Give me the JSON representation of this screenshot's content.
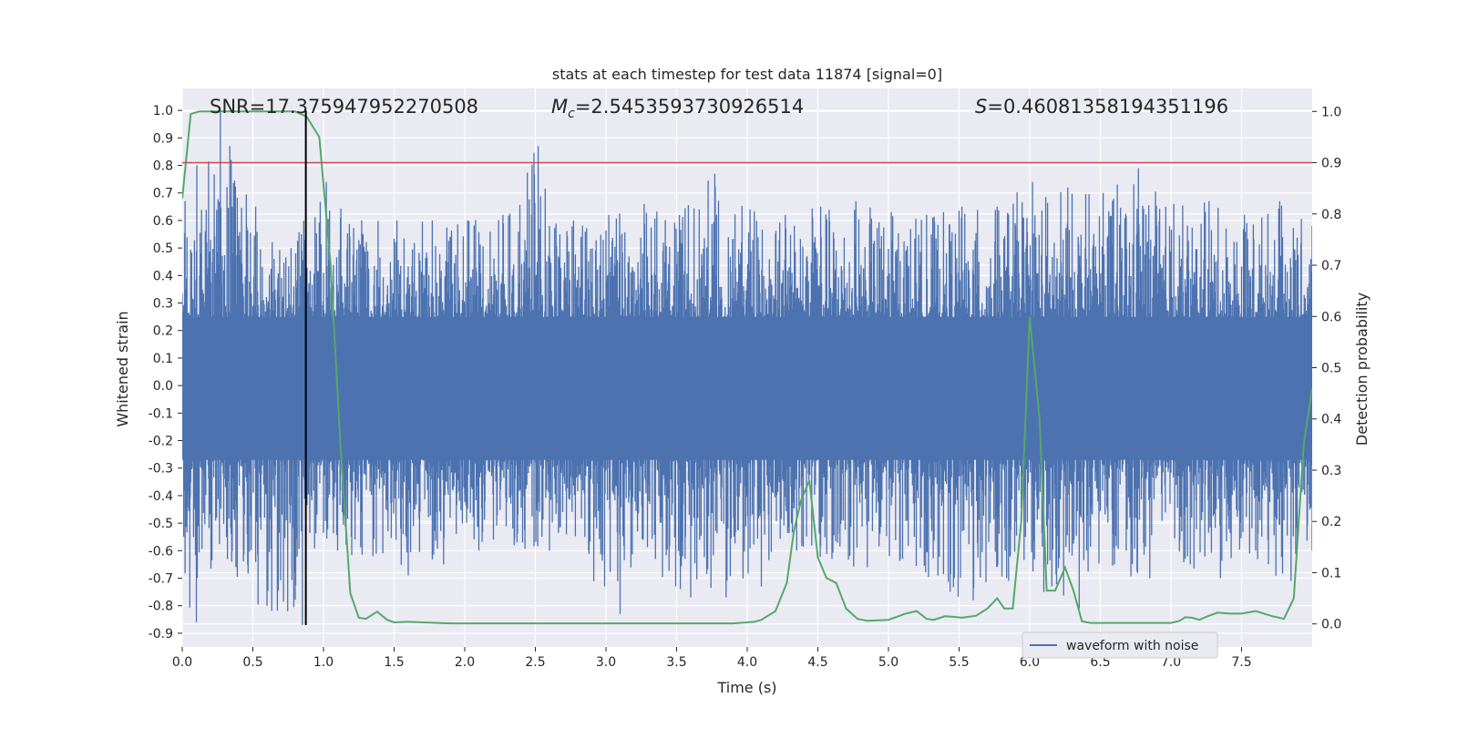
{
  "chart_data": {
    "type": "line",
    "title": "stats at each timestep for test data 11874 [signal=0]",
    "xlabel": "Time (s)",
    "ylabel": "Whitened strain",
    "y2label": "Detection probability",
    "xlim": [
      0.0,
      8.0
    ],
    "ylim": [
      -0.95,
      1.08
    ],
    "y2lim": [
      -0.045,
      1.045
    ],
    "xticks": [
      0.0,
      0.5,
      1.0,
      1.5,
      2.0,
      2.5,
      3.0,
      3.5,
      4.0,
      4.5,
      5.0,
      5.5,
      6.0,
      6.5,
      7.0,
      7.5
    ],
    "yticks": [
      -0.9,
      -0.8,
      -0.7,
      -0.6,
      -0.5,
      -0.4,
      -0.3,
      -0.2,
      -0.1,
      0.0,
      0.1,
      0.2,
      0.3,
      0.4,
      0.5,
      0.6,
      0.7,
      0.8,
      0.9,
      1.0
    ],
    "y2ticks": [
      0.0,
      0.1,
      0.2,
      0.3,
      0.4,
      0.5,
      0.6,
      0.7,
      0.8,
      0.9,
      1.0
    ],
    "grid": true,
    "legend": {
      "position": "lower-right",
      "entries": [
        "waveform with noise"
      ]
    },
    "annotations": {
      "snr": "SNR=17.375947952270508",
      "mc_symbol": "M",
      "mc_sub": "c",
      "mc_value": "=2.5453593730926514",
      "s_symbol": "S",
      "s_value": "=0.46081358194351196"
    },
    "threshold_line": {
      "axis": "y2",
      "value": 0.9,
      "color": "#c44e52"
    },
    "marker_line": {
      "x": 0.875,
      "y_from": -0.87,
      "y_to": 1.0,
      "color": "#000000"
    },
    "series": [
      {
        "name": "waveform with noise",
        "axis": "y",
        "color": "#4c72b0",
        "envelope": {
          "x": [
            0.0,
            0.25,
            0.5,
            0.75,
            1.0,
            1.25,
            1.5,
            1.75,
            2.0,
            2.25,
            2.5,
            2.75,
            3.0,
            3.25,
            3.5,
            3.75,
            4.0,
            4.25,
            4.5,
            4.75,
            5.0,
            5.25,
            5.5,
            5.75,
            6.0,
            6.25,
            6.5,
            6.75,
            7.0,
            7.25,
            7.5,
            7.75,
            8.0
          ],
          "max": [
            0.67,
            1.0,
            0.65,
            0.5,
            0.74,
            0.6,
            0.6,
            0.6,
            0.6,
            0.62,
            0.87,
            0.6,
            0.62,
            0.66,
            0.62,
            0.77,
            0.64,
            0.62,
            0.65,
            0.67,
            0.63,
            0.62,
            0.65,
            0.65,
            0.74,
            0.72,
            0.7,
            0.79,
            0.66,
            0.67,
            0.62,
            0.67,
            0.58
          ],
          "min": [
            -0.86,
            -0.64,
            -0.8,
            -0.87,
            -0.6,
            -0.62,
            -0.69,
            -0.65,
            -0.6,
            -0.58,
            -0.6,
            -0.55,
            -0.83,
            -0.63,
            -0.77,
            -0.77,
            -0.73,
            -0.6,
            -0.63,
            -0.66,
            -0.63,
            -0.69,
            -0.78,
            -0.71,
            -0.75,
            -0.81,
            -0.65,
            -0.7,
            -0.63,
            -0.7,
            -0.6,
            -0.71,
            -0.6
          ]
        }
      },
      {
        "name": "",
        "axis": "y2",
        "color": "#55a868",
        "x": [
          0.0,
          0.06,
          0.12,
          0.3,
          0.5,
          0.8,
          0.88,
          0.97,
          1.05,
          1.12,
          1.19,
          1.25,
          1.3,
          1.38,
          1.45,
          1.5,
          1.6,
          1.7,
          1.9,
          2.3,
          2.6,
          3.0,
          3.5,
          3.9,
          4.05,
          4.1,
          4.2,
          4.28,
          4.33,
          4.38,
          4.44,
          4.5,
          4.56,
          4.63,
          4.7,
          4.78,
          4.85,
          5.0,
          5.12,
          5.2,
          5.27,
          5.32,
          5.4,
          5.45,
          5.52,
          5.62,
          5.7,
          5.77,
          5.82,
          5.88,
          5.94,
          6.0,
          6.07,
          6.12,
          6.18,
          6.25,
          6.31,
          6.37,
          6.43,
          6.5,
          6.8,
          7.0,
          7.06,
          7.1,
          7.15,
          7.2,
          7.26,
          7.33,
          7.42,
          7.5,
          7.6,
          7.72,
          7.8,
          7.87,
          7.94,
          8.0
        ],
        "y": [
          0.83,
          0.995,
          1.0,
          1.0,
          1.0,
          1.0,
          0.99,
          0.95,
          0.7,
          0.35,
          0.06,
          0.012,
          0.01,
          0.024,
          0.008,
          0.003,
          0.004,
          0.003,
          0.001,
          0.001,
          0.001,
          0.001,
          0.001,
          0.001,
          0.004,
          0.008,
          0.025,
          0.08,
          0.18,
          0.24,
          0.28,
          0.13,
          0.09,
          0.08,
          0.03,
          0.01,
          0.006,
          0.008,
          0.02,
          0.025,
          0.01,
          0.008,
          0.015,
          0.014,
          0.012,
          0.016,
          0.03,
          0.05,
          0.03,
          0.03,
          0.2,
          0.6,
          0.4,
          0.065,
          0.065,
          0.11,
          0.065,
          0.005,
          0.002,
          0.002,
          0.002,
          0.002,
          0.006,
          0.013,
          0.012,
          0.008,
          0.015,
          0.022,
          0.02,
          0.02,
          0.025,
          0.015,
          0.01,
          0.05,
          0.35,
          0.46
        ]
      }
    ]
  }
}
